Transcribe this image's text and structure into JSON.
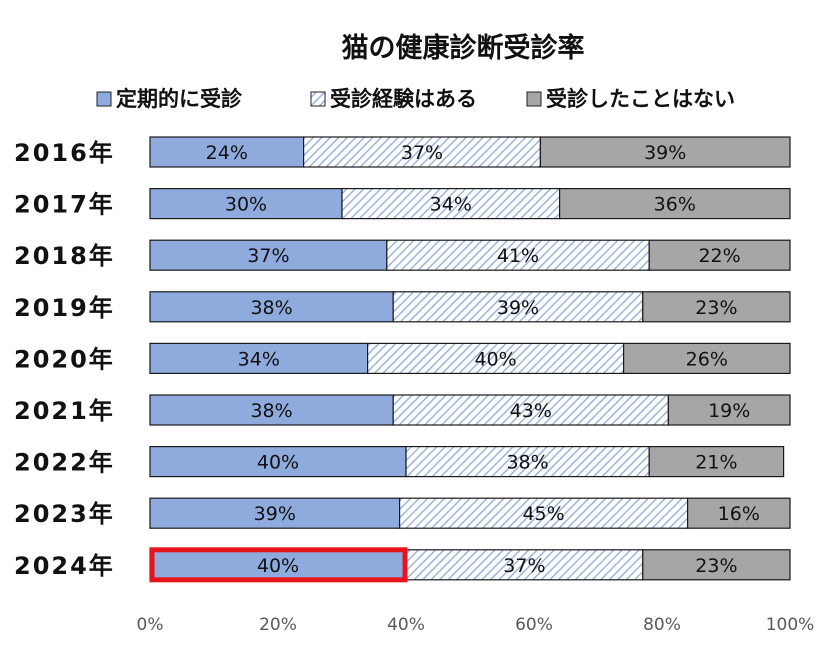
{
  "chart_data": {
    "type": "bar",
    "orientation": "horizontal",
    "stacked": "percent",
    "title": "猫の健康診断受診率",
    "categories": [
      "2016年",
      "2017年",
      "2018年",
      "2019年",
      "2020年",
      "2021年",
      "2022年",
      "2023年",
      "2024年"
    ],
    "series": [
      {
        "name": "定期的に受診",
        "values": [
          24,
          30,
          37,
          38,
          34,
          38,
          40,
          39,
          40
        ],
        "labels": [
          "24%",
          "30%",
          "37%",
          "38%",
          "34%",
          "38%",
          "40%",
          "39%",
          "40%"
        ],
        "color": "#8FAADC",
        "pattern": "solid"
      },
      {
        "name": "受診経験はある",
        "values": [
          37,
          34,
          41,
          39,
          40,
          43,
          38,
          45,
          37
        ],
        "labels": [
          "37%",
          "34%",
          "41%",
          "39%",
          "40%",
          "43%",
          "38%",
          "45%",
          "37%"
        ],
        "color": "#9DB5D8",
        "pattern": "diagonal-hatch"
      },
      {
        "name": "受診したことはない",
        "values": [
          39,
          36,
          22,
          23,
          26,
          19,
          21,
          16,
          23
        ],
        "labels": [
          "39%",
          "36%",
          "22%",
          "23%",
          "26%",
          "19%",
          "21%",
          "16%",
          "23%"
        ],
        "color": "#A6A6A6",
        "pattern": "solid"
      }
    ],
    "xlim": [
      0,
      100
    ],
    "xticks": [
      "0%",
      "20%",
      "40%",
      "60%",
      "80%",
      "100%"
    ],
    "legend_position": "top",
    "grid": false,
    "highlight": {
      "category": "2024年",
      "series": "定期的に受診",
      "color": "#E8141C"
    }
  }
}
